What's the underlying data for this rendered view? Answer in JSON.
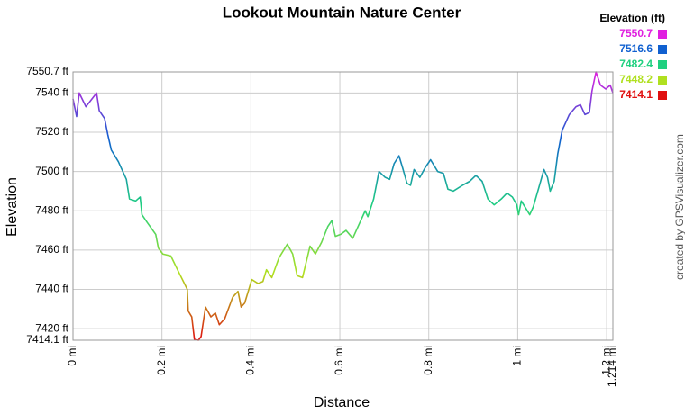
{
  "chart_data": {
    "type": "line",
    "title": "Lookout Mountain Nature Center",
    "x_label": "Distance",
    "y_label": "Elevation",
    "credit": "created by GPSVisualizer.com",
    "legend_title": "Elevation (ft)",
    "color_scale": [
      {
        "value": 7550.7,
        "color": "#e020e0"
      },
      {
        "value": 7516.6,
        "color": "#1060d0"
      },
      {
        "value": 7482.4,
        "color": "#20d080"
      },
      {
        "value": 7448.2,
        "color": "#b0e020"
      },
      {
        "value": 7414.1,
        "color": "#e01010"
      }
    ],
    "grid": true,
    "xlim": [
      0,
      1.214
    ],
    "ylim": [
      7414.1,
      7550.7
    ],
    "xticks": [
      {
        "value": 0,
        "label": "0 mi"
      },
      {
        "value": 0.2,
        "label": "0.2 mi"
      },
      {
        "value": 0.4,
        "label": "0.4 mi"
      },
      {
        "value": 0.6,
        "label": "0.6 mi"
      },
      {
        "value": 0.8,
        "label": "0.8 mi"
      },
      {
        "value": 1,
        "label": "1 mi"
      },
      {
        "value": 1.2,
        "label": "1.2 mi"
      },
      {
        "value": 1.214,
        "label": "1.214 mi"
      }
    ],
    "yticks": [
      {
        "value": 7414.1,
        "label": "7414.1 ft"
      },
      {
        "value": 7420,
        "label": "7420 ft"
      },
      {
        "value": 7440,
        "label": "7440 ft"
      },
      {
        "value": 7460,
        "label": "7460 ft"
      },
      {
        "value": 7480,
        "label": "7480 ft"
      },
      {
        "value": 7500,
        "label": "7500 ft"
      },
      {
        "value": 7520,
        "label": "7520 ft"
      },
      {
        "value": 7540,
        "label": "7540 ft"
      },
      {
        "value": 7550.7,
        "label": "7550.7 ft"
      }
    ],
    "x": [
      0,
      0.008,
      0.014,
      0.029,
      0.053,
      0.059,
      0.071,
      0.078,
      0.086,
      0.102,
      0.12,
      0.127,
      0.141,
      0.151,
      0.155,
      0.167,
      0.186,
      0.192,
      0.202,
      0.22,
      0.235,
      0.257,
      0.259,
      0.267,
      0.273,
      0.282,
      0.288,
      0.298,
      0.31,
      0.32,
      0.329,
      0.341,
      0.359,
      0.371,
      0.378,
      0.386,
      0.402,
      0.416,
      0.427,
      0.435,
      0.447,
      0.463,
      0.482,
      0.494,
      0.504,
      0.516,
      0.533,
      0.545,
      0.559,
      0.573,
      0.582,
      0.59,
      0.602,
      0.614,
      0.629,
      0.645,
      0.657,
      0.663,
      0.676,
      0.688,
      0.702,
      0.712,
      0.722,
      0.733,
      0.741,
      0.751,
      0.759,
      0.767,
      0.78,
      0.792,
      0.804,
      0.82,
      0.833,
      0.843,
      0.855,
      0.876,
      0.892,
      0.906,
      0.92,
      0.933,
      0.947,
      0.963,
      0.976,
      0.988,
      0.998,
      1.002,
      1.008,
      1.027,
      1.035,
      1.049,
      1.059,
      1.067,
      1.073,
      1.082,
      1.09,
      1.1,
      1.116,
      1.131,
      1.141,
      1.151,
      1.161,
      1.167,
      1.176,
      1.186,
      1.198,
      1.208,
      1.214
    ],
    "values": [
      7537,
      7528,
      7540,
      7533,
      7540,
      7531,
      7527,
      7519,
      7511,
      7505,
      7496,
      7486,
      7485,
      7487,
      7478,
      7474,
      7468,
      7461,
      7458,
      7457,
      7450,
      7440,
      7429,
      7426,
      7414.5,
      7414.1,
      7416,
      7431,
      7426,
      7428,
      7422,
      7425,
      7436,
      7439,
      7431,
      7433,
      7445,
      7443,
      7444,
      7450,
      7446,
      7456,
      7463,
      7458,
      7447,
      7446,
      7462,
      7458,
      7464,
      7472,
      7475,
      7467,
      7468,
      7470,
      7466,
      7474,
      7480,
      7477,
      7486,
      7500,
      7497,
      7496,
      7504,
      7508,
      7502,
      7494,
      7493,
      7501,
      7497,
      7502,
      7506,
      7500,
      7499,
      7491,
      7490,
      7493,
      7495,
      7498,
      7495,
      7486,
      7483,
      7486,
      7489,
      7487,
      7483,
      7478,
      7485,
      7478,
      7482,
      7493,
      7501,
      7497,
      7490,
      7495,
      7509,
      7521,
      7529,
      7533,
      7534,
      7529,
      7530,
      7541,
      7550.7,
      7544,
      7542,
      7544,
      7540
    ]
  }
}
